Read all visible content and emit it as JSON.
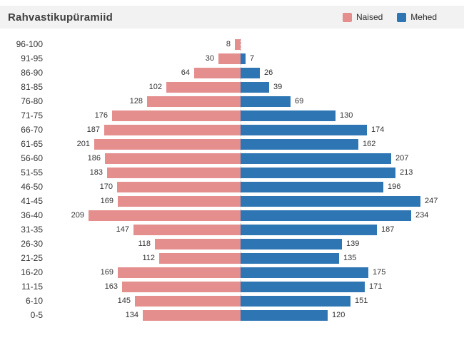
{
  "header": {
    "title": "Rahvastikupüramiid",
    "legend": [
      {
        "label": "Naised",
        "color": "#e58e8e"
      },
      {
        "label": "Mehed",
        "color": "#2e76b3"
      }
    ]
  },
  "chart_data": {
    "type": "bar",
    "subtype": "population-pyramid",
    "title": "Rahvastikupüramiid",
    "orientation": "horizontal",
    "legend_position": "top-right",
    "grid": false,
    "value_labels": true,
    "xlim_each_side": [
      0,
      250
    ],
    "categories": [
      "96-100",
      "91-95",
      "86-90",
      "81-85",
      "76-80",
      "71-75",
      "66-70",
      "61-65",
      "56-60",
      "51-55",
      "46-50",
      "41-45",
      "36-40",
      "31-35",
      "26-30",
      "21-25",
      "16-20",
      "11-15",
      "6-10",
      "0-5"
    ],
    "series": [
      {
        "name": "Naised",
        "side": "left",
        "color": "#e58e8e",
        "values": [
          8,
          30,
          64,
          102,
          128,
          176,
          187,
          201,
          186,
          183,
          170,
          169,
          209,
          147,
          118,
          112,
          169,
          163,
          145,
          134
        ]
      },
      {
        "name": "Mehed",
        "side": "right",
        "color": "#2e76b3",
        "values": [
          null,
          7,
          26,
          39,
          69,
          130,
          174,
          162,
          207,
          213,
          196,
          247,
          234,
          187,
          139,
          135,
          175,
          171,
          151,
          120
        ]
      }
    ]
  }
}
